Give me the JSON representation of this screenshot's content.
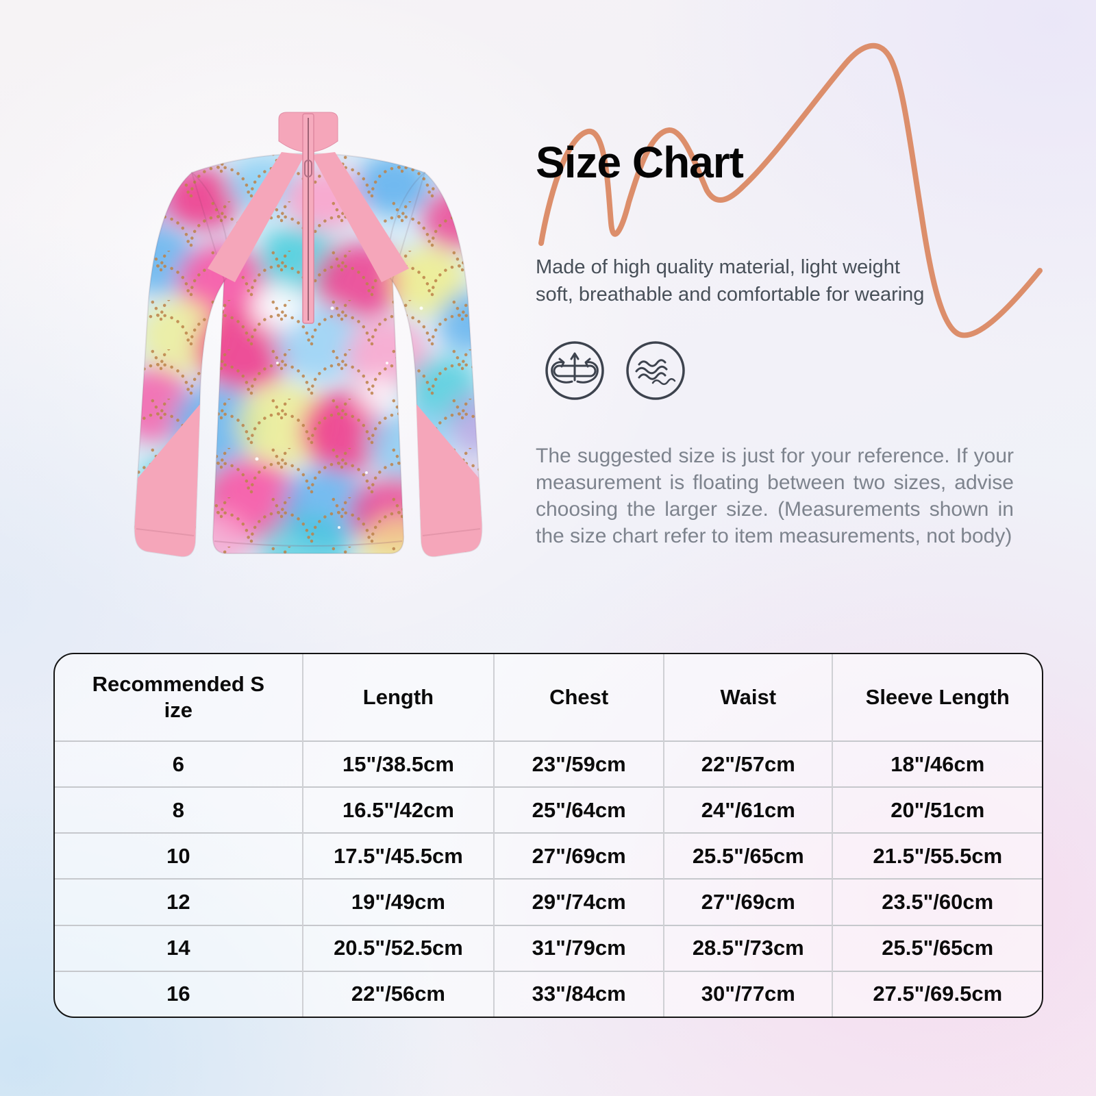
{
  "header": {
    "title": "Size Chart",
    "accent_squiggle_color": "#dc8e6b"
  },
  "intro": {
    "text": "Made of high quality material, light weight\nsoft, breathable and comfortable for wearing"
  },
  "features": {
    "icons": [
      {
        "name": "stretch-icon"
      },
      {
        "name": "breathable-wave-icon"
      }
    ],
    "icon_color": "#3d434e"
  },
  "note": {
    "text": "The suggested size is just for your reference. If your measurement is floating between two sizes, advise choosing the larger size. (Measurements shown in the size chart refer to item measurements, not body)"
  },
  "size_chart": {
    "type": "table",
    "columns": [
      "Recommended S\nize",
      "Length",
      "Chest",
      "Waist",
      "Sleeve Length"
    ],
    "rows": [
      [
        "6",
        "15\"/38.5cm",
        "23\"/59cm",
        "22\"/57cm",
        "18\"/46cm"
      ],
      [
        "8",
        "16.5\"/42cm",
        "25\"/64cm",
        "24\"/61cm",
        "20\"/51cm"
      ],
      [
        "10",
        "17.5\"/45.5cm",
        "27\"/69cm",
        "25.5\"/65cm",
        "21.5\"/55.5cm"
      ],
      [
        "12",
        "19\"/49cm",
        "29\"/74cm",
        "27\"/69cm",
        "23.5\"/60cm"
      ],
      [
        "14",
        "20.5\"/52.5cm",
        "31\"/79cm",
        "28.5\"/73cm",
        "25.5\"/65cm"
      ],
      [
        "16",
        "22\"/56cm",
        "33\"/84cm",
        "30\"/77cm",
        "27.5\"/69.5cm"
      ]
    ]
  },
  "product": {
    "trim_color": "#f5a6ba",
    "scale_dot_color": "#bc8248"
  }
}
